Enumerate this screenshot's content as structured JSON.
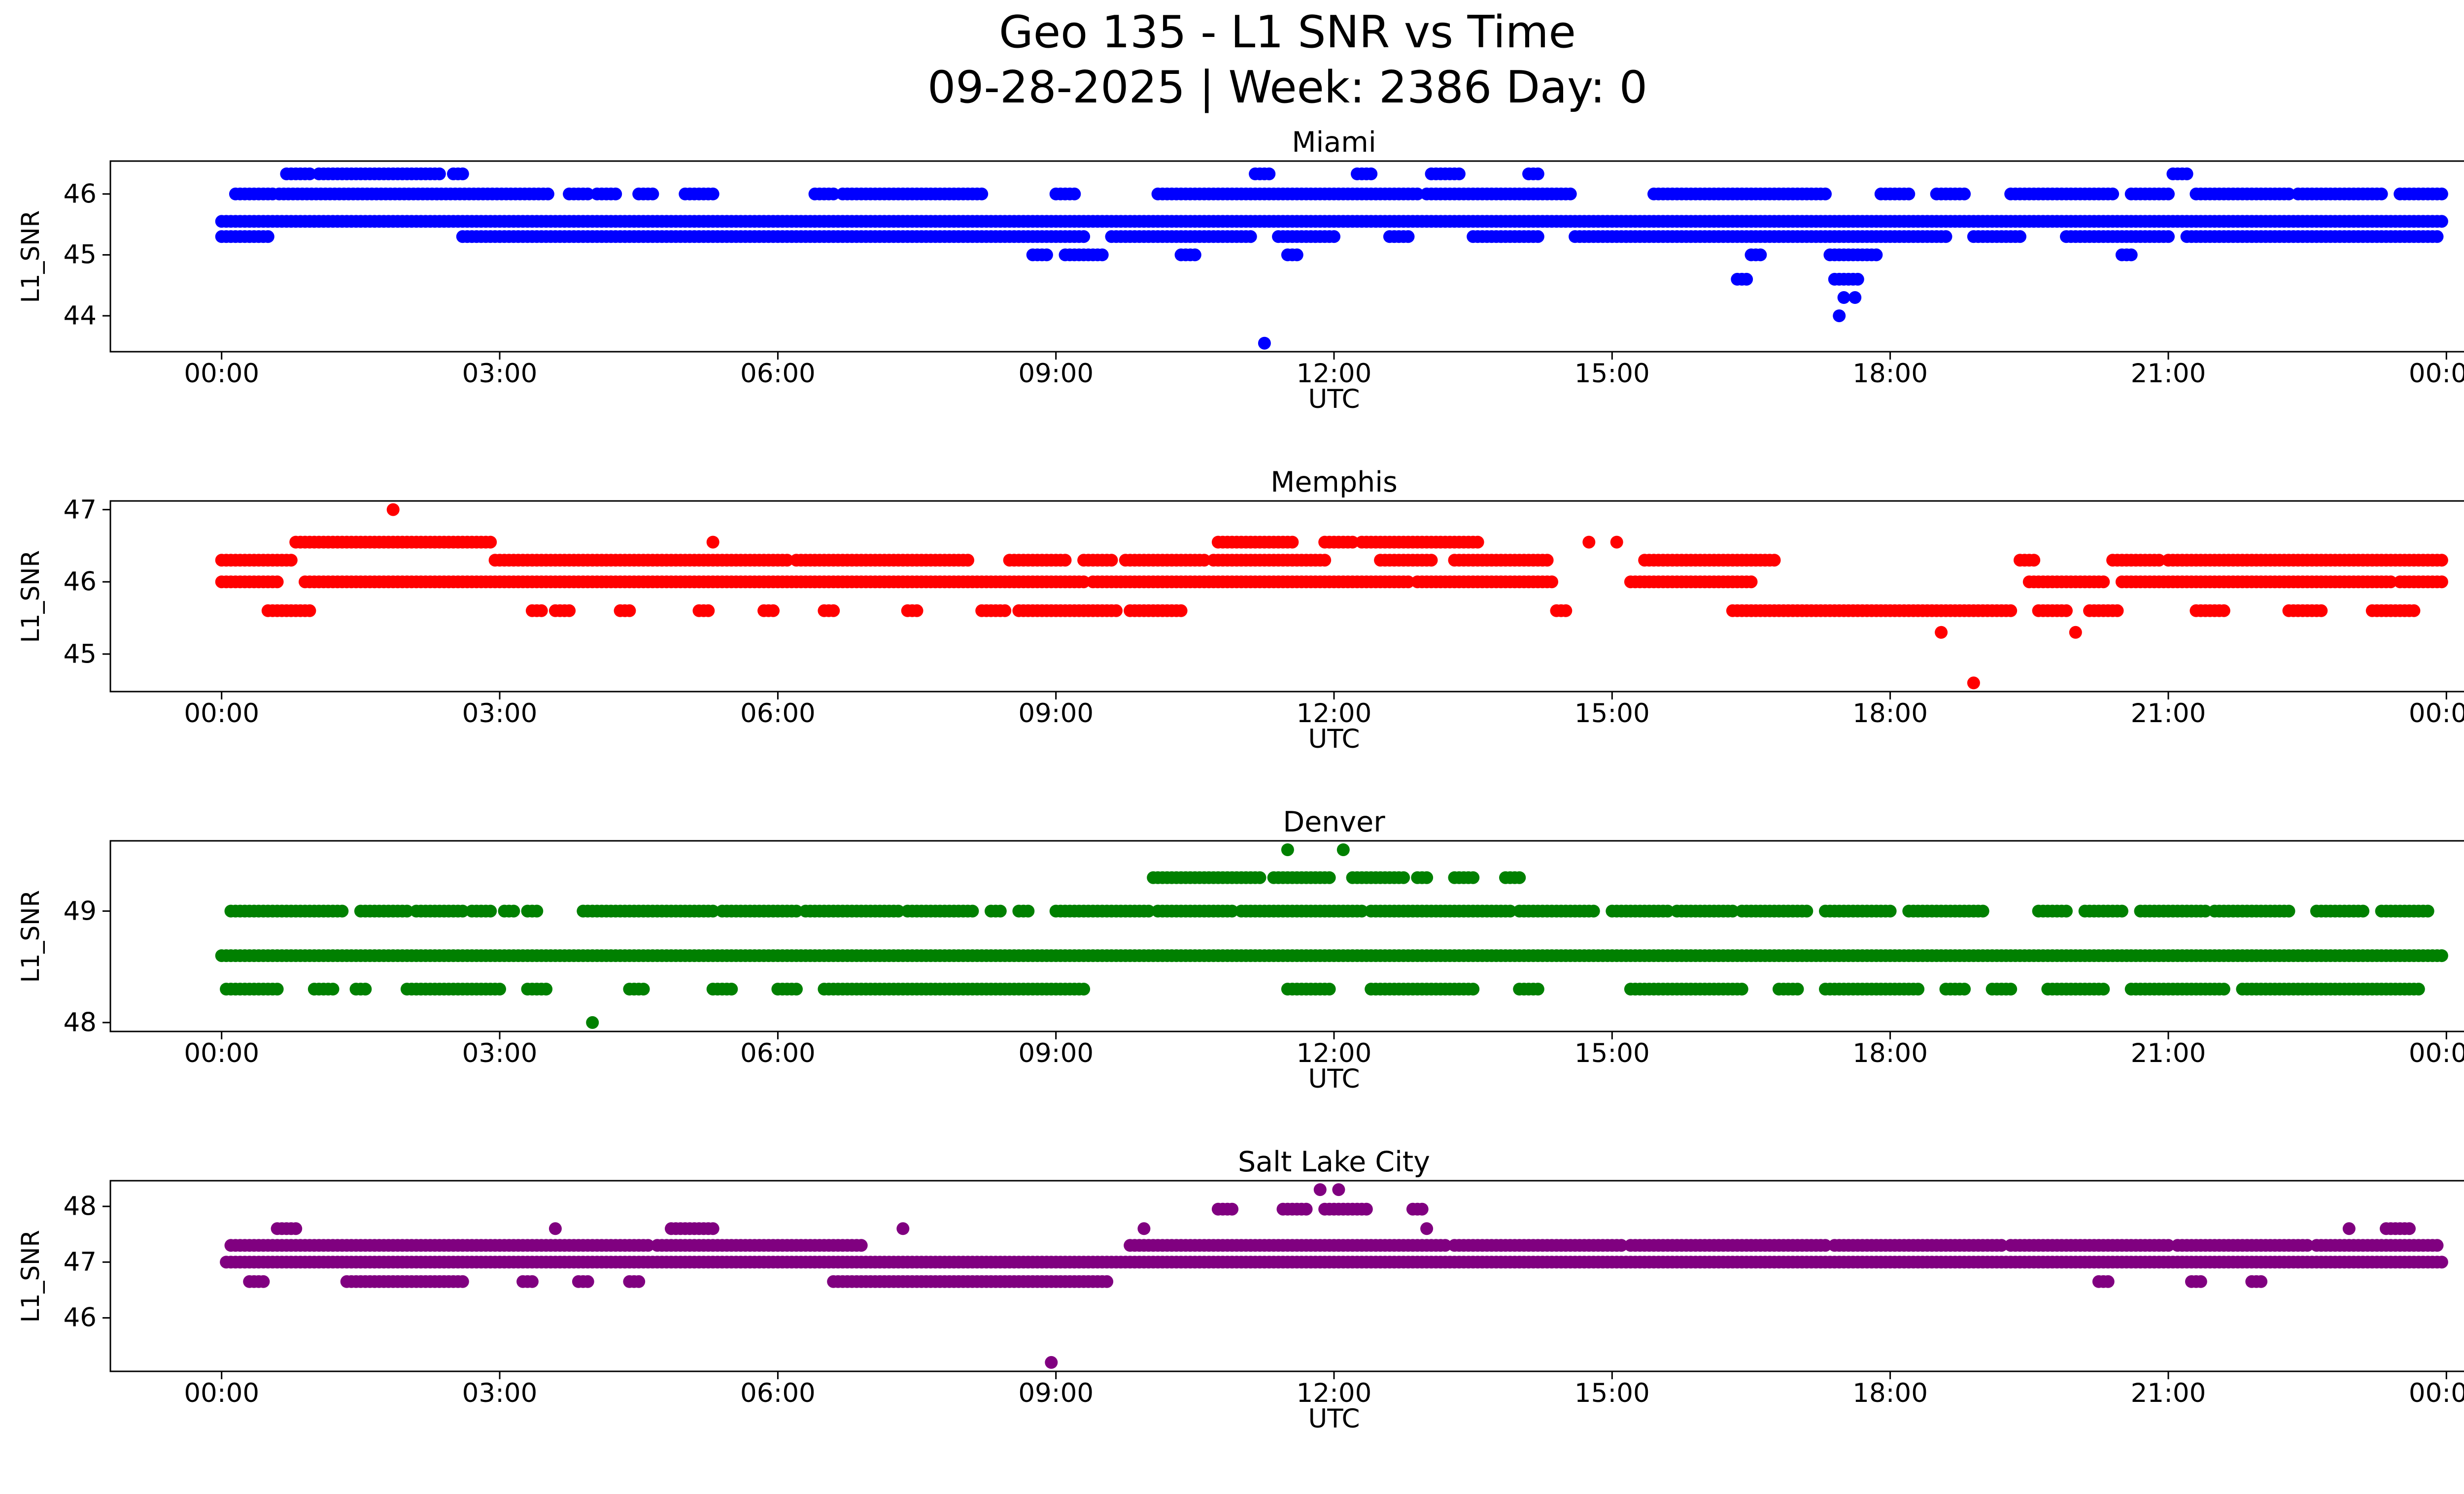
{
  "figure": {
    "title_line1": "Geo 135 - L1 SNR vs Time",
    "title_line2": "09-28-2025 | Week: 2386 Day: 0"
  },
  "axes": {
    "xlabel": "UTC",
    "ylabel": "L1_SNR",
    "xticks": [
      "00:00",
      "03:00",
      "06:00",
      "09:00",
      "12:00",
      "15:00",
      "18:00",
      "21:00",
      "00:00"
    ],
    "xtick_hours": [
      0,
      3,
      6,
      9,
      12,
      15,
      18,
      21,
      24
    ],
    "xlim": [
      -1.2,
      25.2
    ],
    "grid": false,
    "legend": "none"
  },
  "chart_data": [
    {
      "type": "scatter",
      "title": "Miami",
      "color": "#0000ff",
      "ylabel": "L1_SNR",
      "xlabel": "UTC",
      "yticks": [
        44,
        45,
        46
      ],
      "ylim": [
        43.41,
        46.54
      ],
      "x_unit": "hours_utc",
      "bands": [
        {
          "y": 46.33,
          "segments": [
            [
              0.7,
              0.95
            ],
            [
              1.05,
              2.35
            ],
            [
              2.5,
              2.62
            ],
            [
              11.15,
              11.3
            ],
            [
              12.25,
              12.42
            ],
            [
              13.05,
              13.35
            ],
            [
              14.1,
              14.22
            ],
            [
              21.05,
              21.2
            ]
          ]
        },
        {
          "y": 46.0,
          "segments": [
            [
              0.15,
              0.55
            ],
            [
              0.62,
              3.55
            ],
            [
              3.75,
              3.95
            ],
            [
              4.05,
              4.25
            ],
            [
              4.5,
              4.68
            ],
            [
              5.0,
              5.3
            ],
            [
              6.4,
              6.62
            ],
            [
              6.7,
              8.2
            ],
            [
              9.0,
              9.2
            ],
            [
              10.1,
              12.9
            ],
            [
              13.0,
              14.55
            ],
            [
              15.45,
              17.3
            ],
            [
              17.9,
              18.2
            ],
            [
              18.5,
              18.8
            ],
            [
              19.3,
              20.4
            ],
            [
              20.6,
              21.0
            ],
            [
              21.3,
              22.3
            ],
            [
              22.4,
              23.3
            ],
            [
              23.5,
              23.95
            ]
          ]
        },
        {
          "y": 45.55,
          "segments": [
            [
              0.0,
              23.95
            ]
          ]
        },
        {
          "y": 45.3,
          "segments": [
            [
              0.0,
              0.5
            ],
            [
              2.6,
              9.3
            ],
            [
              9.6,
              11.1
            ],
            [
              11.4,
              12.0
            ],
            [
              12.6,
              12.8
            ],
            [
              13.5,
              14.2
            ],
            [
              14.6,
              18.6
            ],
            [
              18.9,
              19.4
            ],
            [
              19.9,
              21.0
            ],
            [
              21.2,
              23.9
            ]
          ]
        },
        {
          "y": 45.0,
          "segments": [
            [
              8.75,
              8.9
            ],
            [
              9.1,
              9.5
            ],
            [
              10.35,
              10.5
            ],
            [
              11.5,
              11.6
            ],
            [
              16.5,
              16.62
            ],
            [
              17.35,
              17.85
            ],
            [
              20.5,
              20.62
            ]
          ]
        },
        {
          "y": 44.6,
          "segments": [
            [
              16.35,
              16.45
            ],
            [
              17.4,
              17.68
            ]
          ]
        }
      ],
      "points": [
        [
          17.5,
          44.3
        ],
        [
          17.62,
          44.3
        ],
        [
          17.45,
          44.0
        ],
        [
          11.25,
          43.55
        ]
      ]
    },
    {
      "type": "scatter",
      "title": "Memphis",
      "color": "#ff0000",
      "ylabel": "L1_SNR",
      "xlabel": "UTC",
      "yticks": [
        45,
        46,
        47
      ],
      "ylim": [
        44.48,
        47.12
      ],
      "x_unit": "hours_utc",
      "bands": [
        {
          "y": 46.55,
          "segments": [
            [
              0.8,
              2.9
            ],
            [
              10.75,
              11.55
            ],
            [
              11.9,
              12.2
            ],
            [
              12.3,
              13.05
            ],
            [
              13.1,
              13.55
            ]
          ]
        },
        {
          "y": 46.3,
          "segments": [
            [
              0.0,
              0.75
            ],
            [
              2.95,
              6.1
            ],
            [
              6.2,
              8.05
            ],
            [
              8.5,
              9.1
            ],
            [
              9.3,
              9.6
            ],
            [
              9.75,
              10.6
            ],
            [
              10.7,
              11.9
            ],
            [
              12.5,
              13.05
            ],
            [
              13.3,
              14.3
            ],
            [
              15.35,
              16.75
            ],
            [
              19.4,
              19.55
            ],
            [
              20.4,
              20.9
            ],
            [
              21.0,
              23.95
            ]
          ]
        },
        {
          "y": 46.0,
          "segments": [
            [
              0.0,
              0.6
            ],
            [
              0.9,
              6.15
            ],
            [
              6.2,
              9.3
            ],
            [
              9.4,
              12.8
            ],
            [
              12.9,
              14.35
            ],
            [
              15.2,
              16.5
            ],
            [
              19.5,
              20.3
            ],
            [
              20.5,
              23.4
            ],
            [
              23.5,
              23.95
            ]
          ]
        },
        {
          "y": 45.6,
          "segments": [
            [
              0.5,
              0.95
            ],
            [
              3.35,
              3.45
            ],
            [
              3.6,
              3.75
            ],
            [
              4.3,
              4.4
            ],
            [
              5.15,
              5.25
            ],
            [
              5.85,
              5.95
            ],
            [
              6.5,
              6.6
            ],
            [
              7.4,
              7.5
            ],
            [
              8.2,
              8.45
            ],
            [
              8.6,
              9.65
            ],
            [
              9.8,
              10.35
            ],
            [
              14.4,
              14.5
            ],
            [
              16.3,
              19.3
            ],
            [
              19.6,
              19.9
            ],
            [
              20.15,
              20.45
            ],
            [
              21.3,
              21.6
            ],
            [
              22.3,
              22.65
            ],
            [
              23.2,
              23.65
            ]
          ]
        }
      ],
      "points": [
        [
          1.85,
          47.0
        ],
        [
          5.3,
          46.55
        ],
        [
          14.75,
          46.55
        ],
        [
          15.05,
          46.55
        ],
        [
          18.55,
          45.3
        ],
        [
          20.0,
          45.3
        ],
        [
          18.9,
          44.6
        ]
      ]
    },
    {
      "type": "scatter",
      "title": "Denver",
      "color": "#008000",
      "ylabel": "L1_SNR",
      "xlabel": "UTC",
      "yticks": [
        48,
        49
      ],
      "ylim": [
        47.92,
        49.63
      ],
      "x_unit": "hours_utc",
      "bands": [
        {
          "y": 49.3,
          "segments": [
            [
              10.05,
              11.2
            ],
            [
              11.35,
              11.95
            ],
            [
              12.2,
              12.75
            ],
            [
              12.9,
              13.0
            ],
            [
              13.3,
              13.5
            ],
            [
              13.85,
              14.0
            ]
          ]
        },
        {
          "y": 49.0,
          "segments": [
            [
              0.1,
              1.3
            ],
            [
              1.5,
              2.0
            ],
            [
              2.1,
              2.6
            ],
            [
              2.7,
              2.9
            ],
            [
              3.05,
              3.15
            ],
            [
              3.3,
              3.4
            ],
            [
              3.9,
              5.3
            ],
            [
              5.4,
              6.2
            ],
            [
              6.3,
              7.3
            ],
            [
              7.4,
              8.1
            ],
            [
              8.3,
              8.4
            ],
            [
              8.6,
              8.7
            ],
            [
              9.0,
              10.0
            ],
            [
              10.1,
              10.9
            ],
            [
              11.0,
              12.3
            ],
            [
              12.4,
              13.9
            ],
            [
              14.0,
              14.8
            ],
            [
              15.0,
              15.6
            ],
            [
              15.7,
              16.3
            ],
            [
              16.4,
              17.1
            ],
            [
              17.3,
              18.0
            ],
            [
              18.2,
              19.0
            ],
            [
              19.6,
              19.9
            ],
            [
              20.1,
              20.5
            ],
            [
              20.7,
              21.4
            ],
            [
              21.5,
              22.3
            ],
            [
              22.6,
              23.1
            ],
            [
              23.3,
              23.8
            ]
          ]
        },
        {
          "y": 48.6,
          "segments": [
            [
              0.0,
              23.95
            ]
          ]
        },
        {
          "y": 48.3,
          "segments": [
            [
              0.05,
              0.6
            ],
            [
              1.0,
              1.2
            ],
            [
              1.45,
              1.55
            ],
            [
              2.0,
              3.0
            ],
            [
              3.3,
              3.5
            ],
            [
              4.4,
              4.55
            ],
            [
              5.3,
              5.5
            ],
            [
              6.0,
              6.2
            ],
            [
              6.5,
              9.3
            ],
            [
              11.5,
              11.95
            ],
            [
              12.4,
              13.5
            ],
            [
              14.0,
              14.2
            ],
            [
              15.2,
              16.4
            ],
            [
              16.8,
              17.0
            ],
            [
              17.3,
              18.3
            ],
            [
              18.6,
              18.8
            ],
            [
              19.1,
              19.3
            ],
            [
              19.7,
              20.3
            ],
            [
              20.6,
              21.6
            ],
            [
              21.8,
              23.7
            ]
          ]
        }
      ],
      "points": [
        [
          11.5,
          49.55
        ],
        [
          12.1,
          49.55
        ],
        [
          4.0,
          48.0
        ]
      ]
    },
    {
      "type": "scatter",
      "title": "Salt Lake City",
      "color": "#800080",
      "ylabel": "L1_SNR",
      "xlabel": "UTC",
      "yticks": [
        46,
        47,
        48
      ],
      "ylim": [
        45.04,
        48.46
      ],
      "x_unit": "hours_utc",
      "bands": [
        {
          "y": 47.95,
          "segments": [
            [
              10.75,
              10.9
            ],
            [
              11.45,
              11.7
            ],
            [
              11.9,
              12.35
            ],
            [
              12.85,
              12.95
            ]
          ]
        },
        {
          "y": 47.6,
          "segments": [
            [
              0.6,
              0.8
            ],
            [
              4.85,
              5.3
            ],
            [
              23.35,
              23.6
            ]
          ]
        },
        {
          "y": 47.3,
          "segments": [
            [
              0.1,
              4.6
            ],
            [
              4.7,
              6.9
            ],
            [
              9.8,
              13.2
            ],
            [
              13.3,
              15.1
            ],
            [
              15.2,
              17.3
            ],
            [
              17.4,
              19.2
            ],
            [
              19.3,
              21.0
            ],
            [
              21.1,
              22.5
            ],
            [
              22.6,
              23.9
            ]
          ]
        },
        {
          "y": 47.0,
          "segments": [
            [
              0.05,
              23.95
            ]
          ]
        },
        {
          "y": 46.65,
          "segments": [
            [
              0.3,
              0.45
            ],
            [
              1.35,
              2.6
            ],
            [
              3.25,
              3.35
            ],
            [
              3.85,
              3.95
            ],
            [
              4.4,
              4.5
            ],
            [
              6.6,
              9.55
            ],
            [
              20.25,
              20.35
            ],
            [
              21.25,
              21.35
            ],
            [
              21.9,
              22.0
            ]
          ]
        }
      ],
      "points": [
        [
          11.85,
          48.3
        ],
        [
          12.05,
          48.3
        ],
        [
          3.6,
          47.6
        ],
        [
          7.35,
          47.6
        ],
        [
          9.95,
          47.6
        ],
        [
          13.0,
          47.6
        ],
        [
          22.95,
          47.6
        ],
        [
          8.95,
          45.2
        ]
      ]
    }
  ]
}
